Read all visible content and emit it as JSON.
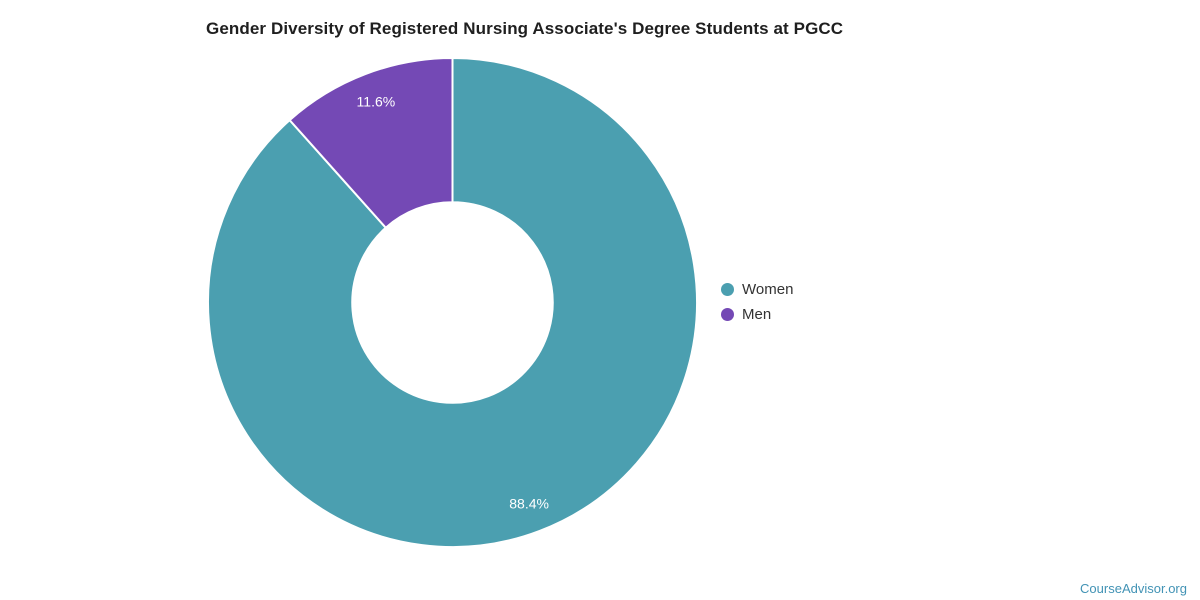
{
  "chart_data": {
    "type": "pie",
    "subtype": "donut",
    "title": "Gender Diversity of Registered Nursing Associate's Degree Students at PGCC",
    "categories": [
      "Women",
      "Men"
    ],
    "values": [
      88.4,
      11.6
    ],
    "unit": "percent",
    "slice_labels": [
      "88.4%",
      "11.6%"
    ],
    "colors": [
      "#4B9FB0",
      "#7449B5"
    ],
    "start_angle_deg": 0,
    "direction": "clockwise",
    "inner_radius_ratio": 0.41,
    "slice_label_color": "#FFFFFF",
    "slice_border_color": "#FFFFFF",
    "legend_position": "right",
    "grid": false
  },
  "footer": {
    "brand": "CourseAdvisor.org",
    "color": "#4293B5"
  }
}
